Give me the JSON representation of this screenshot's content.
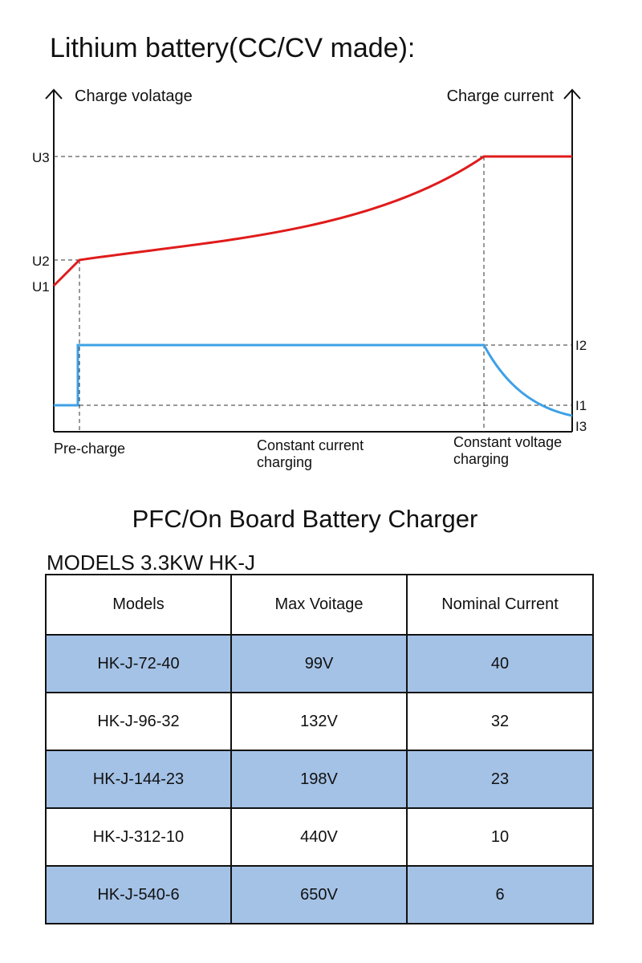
{
  "title": "Lithium battery(CC/CV made):",
  "chart_data": {
    "type": "line",
    "left_axis_label": "Charge volatage",
    "right_axis_label": "Charge current",
    "voltage_levels": [
      "U1",
      "U2",
      "U3"
    ],
    "current_levels": [
      "I1",
      "I2",
      "I3"
    ],
    "stages": [
      "Pre-charge",
      "Constant current charging",
      "Constant voltage charging"
    ],
    "stage_lines": [
      [
        "Pre-charge"
      ],
      [
        "Constant current",
        "charging"
      ],
      [
        "Constant voltage",
        "charging"
      ]
    ],
    "series": [
      {
        "key": "voltage",
        "color": "#e01b1b"
      },
      {
        "key": "current",
        "color": "#3ea1e6"
      }
    ]
  },
  "subtitle": "PFC/On Board Battery Charger",
  "models_label": "MODELS  3.3KW HK-J",
  "table": {
    "headers": [
      "Models",
      "Max Voitage",
      "Nominal Current"
    ],
    "rows": [
      [
        "HK-J-72-40",
        "99V",
        "40"
      ],
      [
        "HK-J-96-32",
        "132V",
        "32"
      ],
      [
        "HK-J-144-23",
        "198V",
        "23"
      ],
      [
        "HK-J-312-10",
        "440V",
        "10"
      ],
      [
        "HK-J-540-6",
        "650V",
        "6"
      ]
    ]
  }
}
